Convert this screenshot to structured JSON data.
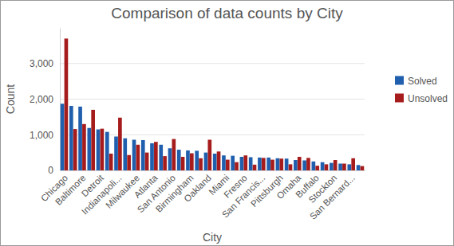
{
  "chart_data": {
    "type": "bar",
    "title": "Comparison of data counts by City",
    "x_label": "City",
    "y_label": "Count",
    "categories": [
      "Chicago",
      null,
      "Baltimore",
      null,
      "Detroit",
      null,
      "Indianapoli...",
      null,
      "Milwaukee",
      null,
      "Atlanta",
      null,
      "San Antonio",
      null,
      "Birmingham",
      null,
      "Oakland",
      null,
      "Miami",
      null,
      "Fresno",
      null,
      "San Francis...",
      null,
      "Pittsburgh",
      null,
      "Omaha",
      null,
      "Buffalo",
      null,
      "Stockton",
      null,
      "San Bernard...",
      null
    ],
    "series": [
      {
        "name": "Solved",
        "color": "#1f5fad",
        "values": [
          1870,
          1810,
          1790,
          1190,
          1150,
          1080,
          950,
          900,
          860,
          850,
          760,
          720,
          620,
          580,
          560,
          550,
          500,
          470,
          420,
          410,
          380,
          370,
          360,
          360,
          340,
          330,
          290,
          280,
          250,
          230,
          210,
          190,
          170,
          150
        ]
      },
      {
        "name": "Unsolved",
        "color": "#a61c1c",
        "values": [
          3700,
          1160,
          1300,
          1700,
          1170,
          470,
          1480,
          430,
          720,
          500,
          800,
          400,
          880,
          380,
          480,
          340,
          860,
          530,
          300,
          230,
          420,
          160,
          350,
          300,
          330,
          170,
          380,
          350,
          130,
          170,
          290,
          190,
          340,
          120
        ]
      }
    ],
    "ylim": [
      0,
      4000
    ],
    "yticks": [
      0,
      {
        "value": 1000,
        "label": "1,000"
      },
      {
        "value": 2000,
        "label": "2,000"
      },
      {
        "value": 3000,
        "label": "3,000"
      }
    ],
    "grid": true,
    "legend": "right"
  }
}
